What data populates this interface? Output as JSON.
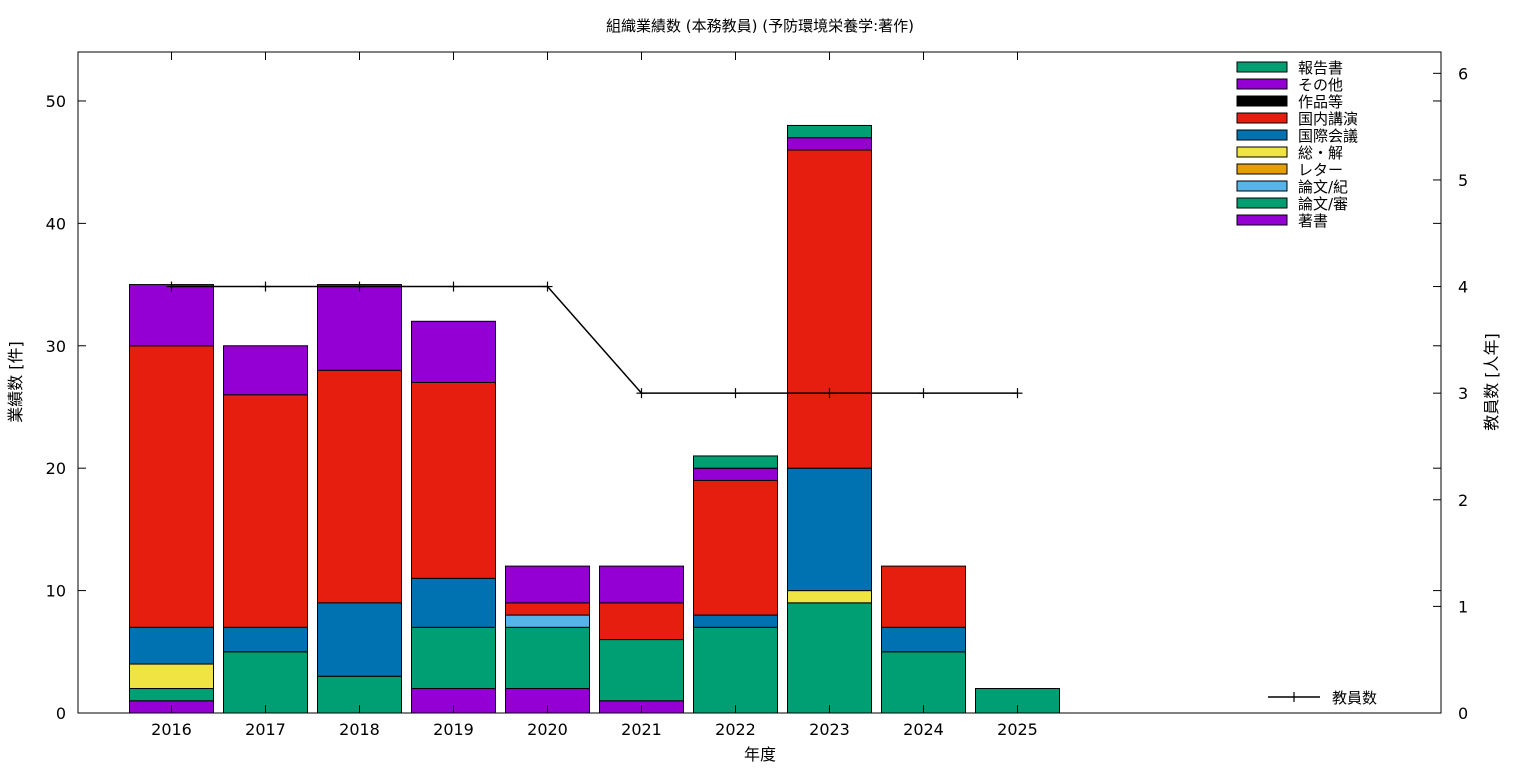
{
  "chart_data": {
    "type": "bar",
    "stacked": true,
    "title": "組織業績数 (本務教員) (予防環境栄養学:著作)",
    "xlabel": "年度",
    "ylabel": "業績数 [件]",
    "y2label": "教員数 [人年]",
    "ylim": [
      0,
      54
    ],
    "y2lim": [
      0,
      6.2
    ],
    "yticks": [
      0,
      10,
      20,
      30,
      40,
      50
    ],
    "y2ticks": [
      0,
      1,
      2,
      3,
      4,
      5,
      6
    ],
    "grid": false,
    "legend_position": "top-right",
    "categories": [
      "2016",
      "2017",
      "2018",
      "2019",
      "2020",
      "2021",
      "2022",
      "2023",
      "2024",
      "2025"
    ],
    "series": [
      {
        "name": "著書",
        "color": "#9400d3",
        "values": [
          1,
          0,
          0,
          2,
          2,
          1,
          0,
          0,
          0,
          0
        ]
      },
      {
        "name": "論文/審",
        "color": "#009e73",
        "values": [
          1,
          5,
          3,
          5,
          5,
          5,
          7,
          9,
          5,
          2
        ]
      },
      {
        "name": "論文/紀",
        "color": "#56b4e9",
        "values": [
          0,
          0,
          0,
          0,
          1,
          0,
          0,
          0,
          0,
          0
        ]
      },
      {
        "name": "レター",
        "color": "#e69f00",
        "values": [
          0,
          0,
          0,
          0,
          0,
          0,
          0,
          0,
          0,
          0
        ]
      },
      {
        "name": "総・解",
        "color": "#f0e442",
        "values": [
          2,
          0,
          0,
          0,
          0,
          0,
          0,
          1,
          0,
          0
        ]
      },
      {
        "name": "国際会議",
        "color": "#0072b2",
        "values": [
          3,
          2,
          6,
          4,
          0,
          0,
          1,
          10,
          2,
          0
        ]
      },
      {
        "name": "国内講演",
        "color": "#e51e10",
        "values": [
          23,
          19,
          19,
          16,
          1,
          3,
          11,
          26,
          5,
          0
        ]
      },
      {
        "name": "作品等",
        "color": "#000000",
        "values": [
          0,
          0,
          0,
          0,
          0,
          0,
          0,
          0,
          0,
          0
        ]
      },
      {
        "name": "その他",
        "color": "#9400d3",
        "values": [
          5,
          4,
          7,
          5,
          3,
          3,
          1,
          1,
          0,
          0
        ]
      },
      {
        "name": "報告書",
        "color": "#009e73",
        "values": [
          0,
          0,
          0,
          0,
          0,
          0,
          1,
          1,
          0,
          0
        ]
      }
    ],
    "line_series": {
      "name": "教員数",
      "axis": "y2",
      "color": "#000000",
      "values": [
        4,
        4,
        4,
        4,
        4,
        3,
        3,
        3,
        3,
        3
      ]
    }
  }
}
